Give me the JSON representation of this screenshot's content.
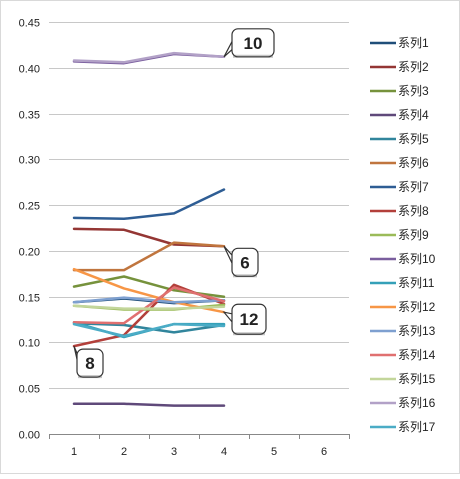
{
  "chart_data": {
    "type": "line",
    "title": "",
    "xlabel": "",
    "ylabel": "",
    "x": [
      1,
      2,
      3,
      4
    ],
    "x_ticks": [
      "1",
      "2",
      "3",
      "4",
      "5",
      "6"
    ],
    "xlim": [
      0.5,
      6.5
    ],
    "ylim": [
      0,
      0.45
    ],
    "y_ticks": [
      "0.00",
      "0.05",
      "0.10",
      "0.15",
      "0.20",
      "0.25",
      "0.30",
      "0.35",
      "0.40",
      "0.45"
    ],
    "grid": true,
    "legend_position": "right",
    "series": [
      {
        "name": "系列1",
        "color": "#1f4e79",
        "values": [
          0.144,
          0.148,
          0.143,
          0.146
        ]
      },
      {
        "name": "系列2",
        "color": "#943634",
        "values": [
          0.224,
          0.223,
          0.207,
          0.205
        ]
      },
      {
        "name": "系列3",
        "color": "#76923c",
        "values": [
          0.161,
          0.172,
          0.157,
          0.15
        ]
      },
      {
        "name": "系列4",
        "color": "#5f497a",
        "values": [
          0.033,
          0.033,
          0.031,
          0.031
        ]
      },
      {
        "name": "系列5",
        "color": "#31859c",
        "values": [
          0.121,
          0.119,
          0.111,
          0.119
        ]
      },
      {
        "name": "系列6",
        "color": "#c0753e",
        "values": [
          0.179,
          0.179,
          0.209,
          0.205
        ]
      },
      {
        "name": "系列7",
        "color": "#2e5d94",
        "values": [
          0.236,
          0.235,
          0.241,
          0.267
        ]
      },
      {
        "name": "系列8",
        "color": "#b3403b",
        "values": [
          0.096,
          0.108,
          0.163,
          0.142
        ]
      },
      {
        "name": "系列9",
        "color": "#9bbb59",
        "values": [
          0.14,
          0.136,
          0.136,
          0.141
        ]
      },
      {
        "name": "系列10",
        "color": "#7a5e9e",
        "values": [
          0.407,
          0.405,
          0.415,
          0.412
        ]
      },
      {
        "name": "系列11",
        "color": "#34a0b8",
        "values": [
          0.122,
          0.106,
          0.12,
          0.12
        ]
      },
      {
        "name": "系列12",
        "color": "#f79646",
        "values": [
          0.18,
          0.159,
          0.144,
          0.133
        ]
      },
      {
        "name": "系列13",
        "color": "#7ea0d0",
        "values": [
          0.144,
          0.149,
          0.144,
          0.146
        ]
      },
      {
        "name": "系列14",
        "color": "#e07070",
        "values": [
          0.122,
          0.121,
          0.16,
          0.145
        ]
      },
      {
        "name": "系列15",
        "color": "#c3d69b",
        "values": [
          0.14,
          0.137,
          0.137,
          0.139
        ]
      },
      {
        "name": "系列16",
        "color": "#b2a1c7",
        "values": [
          0.408,
          0.406,
          0.416,
          0.412
        ]
      },
      {
        "name": "系列17",
        "color": "#4bacc6",
        "values": [
          0.12,
          0.107,
          0.12,
          0.118
        ]
      }
    ],
    "annotations": [
      {
        "text": "10",
        "x": 4,
        "y": 0.412
      },
      {
        "text": "6",
        "x": 4,
        "y": 0.205
      },
      {
        "text": "12",
        "x": 4,
        "y": 0.133
      },
      {
        "text": "8",
        "x": 1,
        "y": 0.096
      }
    ]
  }
}
